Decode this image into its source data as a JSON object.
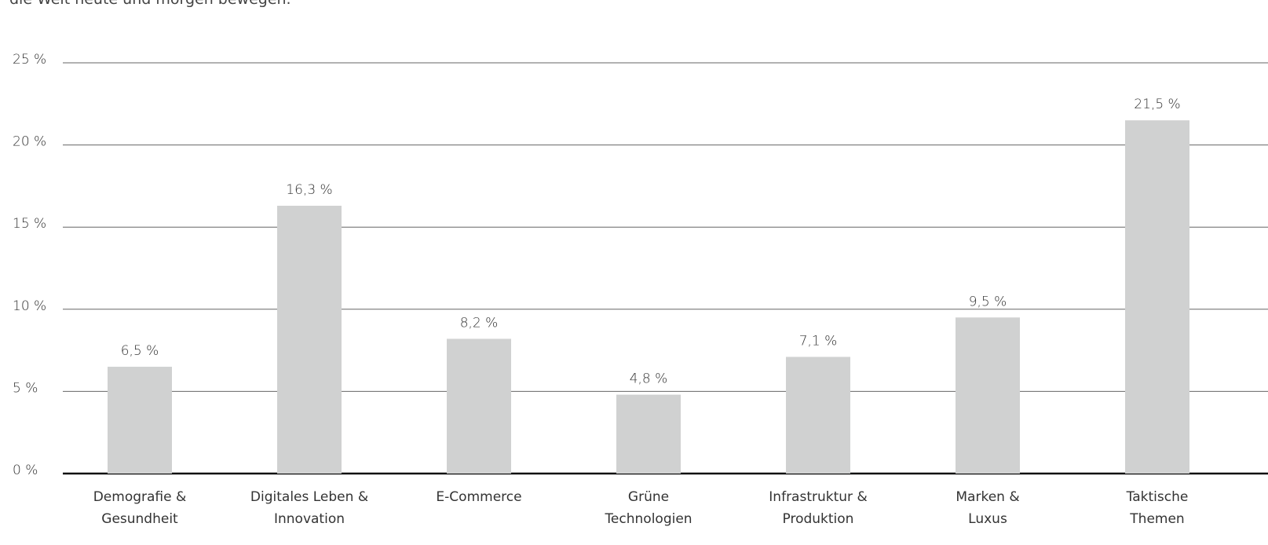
{
  "chart_data": {
    "type": "bar",
    "subtitle": "die Welt heute und morgen bewegen.",
    "categories": [
      "Demografie &\nGesundheit",
      "Digitales Leben &\nInnovation",
      "E-Commerce",
      "Grüne\nTechnologien",
      "Infrastruktur &\nProduktion",
      "Marken &\nLuxus",
      "Taktische\nThemen"
    ],
    "values": [
      6.5,
      16.3,
      8.2,
      4.8,
      7.1,
      9.5,
      21.5
    ],
    "value_labels": [
      "6,5 %",
      "16,3 %",
      "8,2 %",
      "4,8 %",
      "7,1 %",
      "9,5 %",
      "21,5 %"
    ],
    "color": "#d0d1d1",
    "ylim": [
      0,
      25
    ],
    "yticks": [
      {
        "value": 0,
        "label": "0 %"
      },
      {
        "value": 5,
        "label": "5 %"
      },
      {
        "value": 10,
        "label": "10 %"
      },
      {
        "value": 15,
        "label": "15 %"
      },
      {
        "value": 20,
        "label": "20 %"
      },
      {
        "value": 25,
        "label": "25 %"
      }
    ],
    "grid": true
  }
}
